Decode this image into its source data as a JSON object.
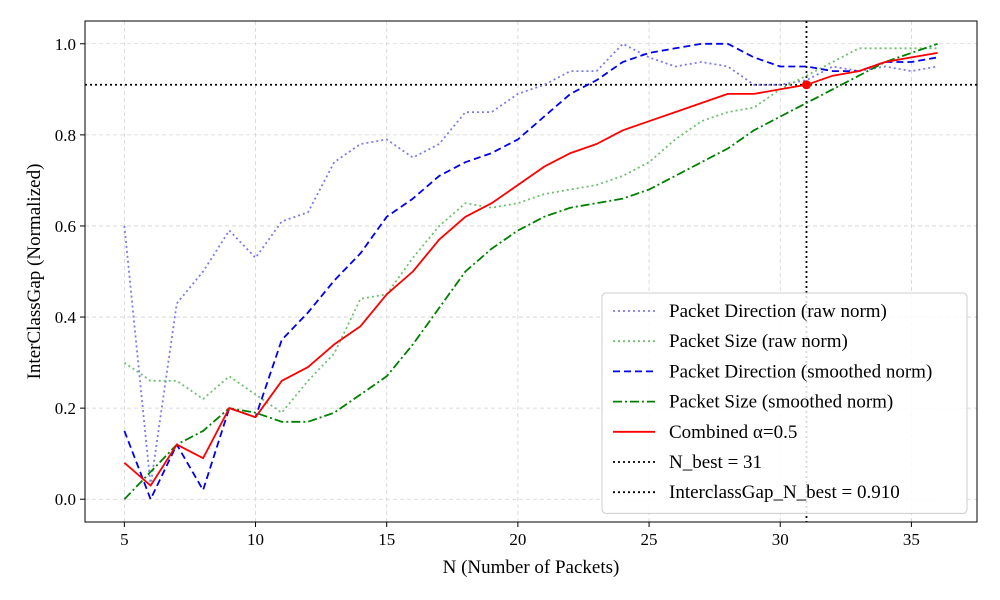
{
  "chart_data": {
    "type": "line",
    "xlabel": "N (Number of Packets)",
    "ylabel": "InterClassGap (Normalized)",
    "xlim": [
      3.5,
      37.5
    ],
    "ylim": [
      -0.05,
      1.05
    ],
    "xticks": [
      5,
      10,
      15,
      20,
      25,
      30,
      35
    ],
    "xtick_labels": [
      "5",
      "10",
      "15",
      "20",
      "25",
      "30",
      "35"
    ],
    "yticks": [
      0.0,
      0.2,
      0.4,
      0.6,
      0.8,
      1.0
    ],
    "ytick_labels": [
      "0.0",
      "0.2",
      "0.4",
      "0.6",
      "0.8",
      "1.0"
    ],
    "grid": true,
    "legend_position": "lower-right",
    "x": [
      5,
      6,
      7,
      8,
      9,
      10,
      11,
      12,
      13,
      14,
      15,
      16,
      17,
      18,
      19,
      20,
      21,
      22,
      23,
      24,
      25,
      26,
      27,
      28,
      29,
      30,
      31,
      32,
      33,
      34,
      35,
      36
    ],
    "series": [
      {
        "name": "Packet Direction (raw norm)",
        "color": "#7b7bf0",
        "style": "dotted",
        "values": [
          0.6,
          0.03,
          0.43,
          0.5,
          0.59,
          0.53,
          0.61,
          0.63,
          0.74,
          0.78,
          0.79,
          0.75,
          0.78,
          0.85,
          0.85,
          0.89,
          0.91,
          0.94,
          0.94,
          1.0,
          0.97,
          0.95,
          0.96,
          0.95,
          0.91,
          0.91,
          0.92,
          0.95,
          0.94,
          0.95,
          0.94,
          0.95
        ]
      },
      {
        "name": "Packet Size (raw norm)",
        "color": "#6fc06f",
        "style": "dotted",
        "values": [
          0.3,
          0.26,
          0.26,
          0.22,
          0.27,
          0.23,
          0.19,
          0.26,
          0.32,
          0.44,
          0.45,
          0.53,
          0.6,
          0.65,
          0.64,
          0.65,
          0.67,
          0.68,
          0.69,
          0.71,
          0.74,
          0.79,
          0.83,
          0.85,
          0.86,
          0.9,
          0.93,
          0.96,
          0.99,
          0.99,
          0.99,
          0.99
        ]
      },
      {
        "name": "Packet Direction (smoothed norm)",
        "color": "#0000ee",
        "style": "dashed",
        "values": [
          0.15,
          0.0,
          0.12,
          0.02,
          0.2,
          0.18,
          0.35,
          0.41,
          0.48,
          0.54,
          0.62,
          0.66,
          0.71,
          0.74,
          0.76,
          0.79,
          0.84,
          0.89,
          0.92,
          0.96,
          0.98,
          0.99,
          1.0,
          1.0,
          0.97,
          0.95,
          0.95,
          0.94,
          0.94,
          0.96,
          0.96,
          0.97
        ]
      },
      {
        "name": "Packet Size (smoothed norm)",
        "color": "#008000",
        "style": "dashdot",
        "values": [
          0.0,
          0.06,
          0.12,
          0.15,
          0.2,
          0.19,
          0.17,
          0.17,
          0.19,
          0.23,
          0.27,
          0.34,
          0.42,
          0.5,
          0.55,
          0.59,
          0.62,
          0.64,
          0.65,
          0.66,
          0.68,
          0.71,
          0.74,
          0.77,
          0.81,
          0.84,
          0.87,
          0.9,
          0.93,
          0.96,
          0.98,
          1.0
        ]
      },
      {
        "name": "Combined α=0.5",
        "color": "#ff0000",
        "style": "solid",
        "values": [
          0.08,
          0.03,
          0.12,
          0.09,
          0.2,
          0.18,
          0.26,
          0.29,
          0.34,
          0.38,
          0.45,
          0.5,
          0.57,
          0.62,
          0.65,
          0.69,
          0.73,
          0.76,
          0.78,
          0.81,
          0.83,
          0.85,
          0.87,
          0.89,
          0.89,
          0.9,
          0.91,
          0.93,
          0.94,
          0.96,
          0.97,
          0.98
        ]
      }
    ],
    "reference_lines": [
      {
        "name": "N_best = 31",
        "orientation": "vertical",
        "value": 31,
        "color": "#000000",
        "style": "dotted"
      },
      {
        "name": "InterclassGap_N_best = 0.910",
        "orientation": "horizontal",
        "value": 0.91,
        "color": "#000000",
        "style": "dotted"
      }
    ],
    "highlight_point": {
      "x": 31,
      "y": 0.91,
      "color": "#ff0000"
    }
  }
}
